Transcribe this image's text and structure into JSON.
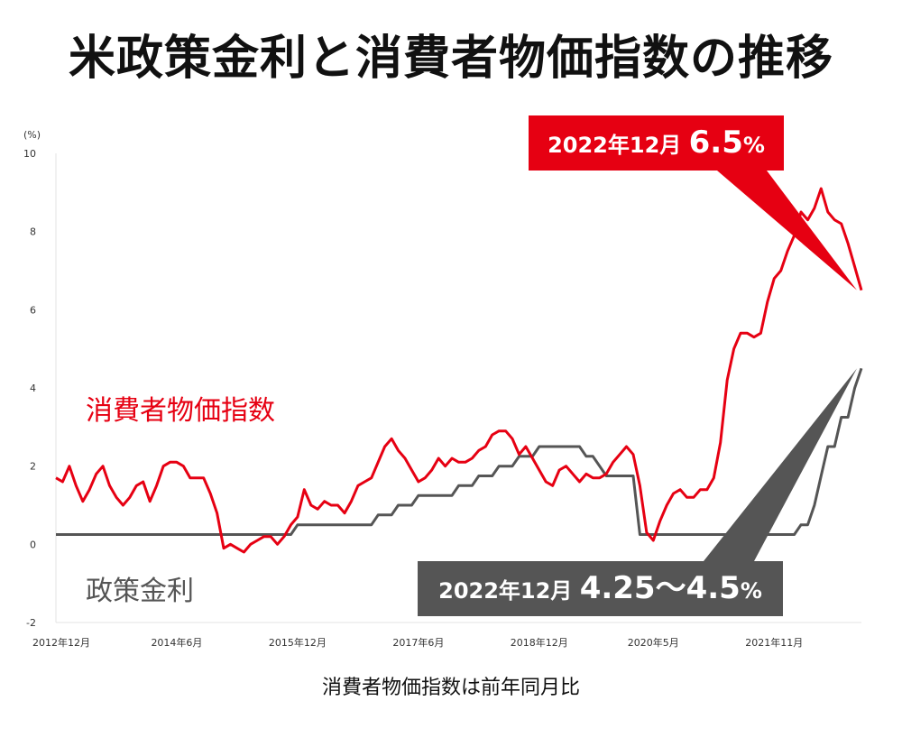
{
  "chart_data": {
    "type": "line",
    "title": "米政策金利と消費者物価指数の推移",
    "caption": "消費者物価指数は前年同月比",
    "y_unit": "(%)",
    "ylim": [
      -2,
      10
    ],
    "yticks": [
      "10",
      "8",
      "6",
      "4",
      "2",
      "0",
      "-2"
    ],
    "grid": false,
    "xlim": [
      "2012-12",
      "2022-12"
    ],
    "x_tick_labels": [
      {
        "label": "2012年12月",
        "date": "2012-12"
      },
      {
        "label": "2014年6月",
        "date": "2014-06"
      },
      {
        "label": "2015年12月",
        "date": "2015-12"
      },
      {
        "label": "2017年6月",
        "date": "2017-06"
      },
      {
        "label": "2018年12月",
        "date": "2018-12"
      },
      {
        "label": "2020年5月",
        "date": "2020-05"
      },
      {
        "label": "2021年11月",
        "date": "2021-11"
      }
    ],
    "series": [
      {
        "name": "消費者物価指数",
        "color": "#e60012",
        "points": [
          [
            "2012-12",
            1.7
          ],
          [
            "2013-01",
            1.6
          ],
          [
            "2013-02",
            2.0
          ],
          [
            "2013-03",
            1.5
          ],
          [
            "2013-04",
            1.1
          ],
          [
            "2013-05",
            1.4
          ],
          [
            "2013-06",
            1.8
          ],
          [
            "2013-07",
            2.0
          ],
          [
            "2013-08",
            1.5
          ],
          [
            "2013-09",
            1.2
          ],
          [
            "2013-10",
            1.0
          ],
          [
            "2013-11",
            1.2
          ],
          [
            "2013-12",
            1.5
          ],
          [
            "2014-01",
            1.6
          ],
          [
            "2014-02",
            1.1
          ],
          [
            "2014-03",
            1.5
          ],
          [
            "2014-04",
            2.0
          ],
          [
            "2014-05",
            2.1
          ],
          [
            "2014-06",
            2.1
          ],
          [
            "2014-07",
            2.0
          ],
          [
            "2014-08",
            1.7
          ],
          [
            "2014-09",
            1.7
          ],
          [
            "2014-10",
            1.7
          ],
          [
            "2014-11",
            1.3
          ],
          [
            "2014-12",
            0.8
          ],
          [
            "2015-01",
            -0.1
          ],
          [
            "2015-02",
            0.0
          ],
          [
            "2015-03",
            -0.1
          ],
          [
            "2015-04",
            -0.2
          ],
          [
            "2015-05",
            0.0
          ],
          [
            "2015-06",
            0.1
          ],
          [
            "2015-07",
            0.2
          ],
          [
            "2015-08",
            0.2
          ],
          [
            "2015-09",
            0.0
          ],
          [
            "2015-10",
            0.2
          ],
          [
            "2015-11",
            0.5
          ],
          [
            "2015-12",
            0.7
          ],
          [
            "2016-01",
            1.4
          ],
          [
            "2016-02",
            1.0
          ],
          [
            "2016-03",
            0.9
          ],
          [
            "2016-04",
            1.1
          ],
          [
            "2016-05",
            1.0
          ],
          [
            "2016-06",
            1.0
          ],
          [
            "2016-07",
            0.8
          ],
          [
            "2016-08",
            1.1
          ],
          [
            "2016-09",
            1.5
          ],
          [
            "2016-10",
            1.6
          ],
          [
            "2016-11",
            1.7
          ],
          [
            "2016-12",
            2.1
          ],
          [
            "2017-01",
            2.5
          ],
          [
            "2017-02",
            2.7
          ],
          [
            "2017-03",
            2.4
          ],
          [
            "2017-04",
            2.2
          ],
          [
            "2017-05",
            1.9
          ],
          [
            "2017-06",
            1.6
          ],
          [
            "2017-07",
            1.7
          ],
          [
            "2017-08",
            1.9
          ],
          [
            "2017-09",
            2.2
          ],
          [
            "2017-10",
            2.0
          ],
          [
            "2017-11",
            2.2
          ],
          [
            "2017-12",
            2.1
          ],
          [
            "2018-01",
            2.1
          ],
          [
            "2018-02",
            2.2
          ],
          [
            "2018-03",
            2.4
          ],
          [
            "2018-04",
            2.5
          ],
          [
            "2018-05",
            2.8
          ],
          [
            "2018-06",
            2.9
          ],
          [
            "2018-07",
            2.9
          ],
          [
            "2018-08",
            2.7
          ],
          [
            "2018-09",
            2.3
          ],
          [
            "2018-10",
            2.5
          ],
          [
            "2018-11",
            2.2
          ],
          [
            "2018-12",
            1.9
          ],
          [
            "2019-01",
            1.6
          ],
          [
            "2019-02",
            1.5
          ],
          [
            "2019-03",
            1.9
          ],
          [
            "2019-04",
            2.0
          ],
          [
            "2019-05",
            1.8
          ],
          [
            "2019-06",
            1.6
          ],
          [
            "2019-07",
            1.8
          ],
          [
            "2019-08",
            1.7
          ],
          [
            "2019-09",
            1.7
          ],
          [
            "2019-10",
            1.8
          ],
          [
            "2019-11",
            2.1
          ],
          [
            "2019-12",
            2.3
          ],
          [
            "2020-01",
            2.5
          ],
          [
            "2020-02",
            2.3
          ],
          [
            "2020-03",
            1.5
          ],
          [
            "2020-04",
            0.3
          ],
          [
            "2020-05",
            0.1
          ],
          [
            "2020-06",
            0.6
          ],
          [
            "2020-07",
            1.0
          ],
          [
            "2020-08",
            1.3
          ],
          [
            "2020-09",
            1.4
          ],
          [
            "2020-10",
            1.2
          ],
          [
            "2020-11",
            1.2
          ],
          [
            "2020-12",
            1.4
          ],
          [
            "2021-01",
            1.4
          ],
          [
            "2021-02",
            1.7
          ],
          [
            "2021-03",
            2.6
          ],
          [
            "2021-04",
            4.2
          ],
          [
            "2021-05",
            5.0
          ],
          [
            "2021-06",
            5.4
          ],
          [
            "2021-07",
            5.4
          ],
          [
            "2021-08",
            5.3
          ],
          [
            "2021-09",
            5.4
          ],
          [
            "2021-10",
            6.2
          ],
          [
            "2021-11",
            6.8
          ],
          [
            "2021-12",
            7.0
          ],
          [
            "2022-01",
            7.5
          ],
          [
            "2022-02",
            7.9
          ],
          [
            "2022-03",
            8.5
          ],
          [
            "2022-04",
            8.3
          ],
          [
            "2022-05",
            8.6
          ],
          [
            "2022-06",
            9.1
          ],
          [
            "2022-07",
            8.5
          ],
          [
            "2022-08",
            8.3
          ],
          [
            "2022-09",
            8.2
          ],
          [
            "2022-10",
            7.7
          ],
          [
            "2022-11",
            7.1
          ],
          [
            "2022-12",
            6.5
          ]
        ]
      },
      {
        "name": "政策金利",
        "color": "#555555",
        "points": [
          [
            "2012-12",
            0.25
          ],
          [
            "2015-11",
            0.25
          ],
          [
            "2015-12",
            0.5
          ],
          [
            "2016-11",
            0.5
          ],
          [
            "2016-12",
            0.75
          ],
          [
            "2017-02",
            0.75
          ],
          [
            "2017-03",
            1.0
          ],
          [
            "2017-05",
            1.0
          ],
          [
            "2017-06",
            1.25
          ],
          [
            "2017-11",
            1.25
          ],
          [
            "2017-12",
            1.5
          ],
          [
            "2018-02",
            1.5
          ],
          [
            "2018-03",
            1.75
          ],
          [
            "2018-05",
            1.75
          ],
          [
            "2018-06",
            2.0
          ],
          [
            "2018-08",
            2.0
          ],
          [
            "2018-09",
            2.25
          ],
          [
            "2018-11",
            2.25
          ],
          [
            "2018-12",
            2.5
          ],
          [
            "2019-06",
            2.5
          ],
          [
            "2019-07",
            2.25
          ],
          [
            "2019-08",
            2.25
          ],
          [
            "2019-09",
            2.0
          ],
          [
            "2019-10",
            1.75
          ],
          [
            "2020-02",
            1.75
          ],
          [
            "2020-03",
            0.25
          ],
          [
            "2022-02",
            0.25
          ],
          [
            "2022-03",
            0.5
          ],
          [
            "2022-04",
            0.5
          ],
          [
            "2022-05",
            1.0
          ],
          [
            "2022-06",
            1.75
          ],
          [
            "2022-07",
            2.5
          ],
          [
            "2022-08",
            2.5
          ],
          [
            "2022-09",
            3.25
          ],
          [
            "2022-10",
            3.25
          ],
          [
            "2022-11",
            4.0
          ],
          [
            "2022-12",
            4.5
          ]
        ]
      }
    ],
    "annotations": [
      {
        "id": "cpi",
        "date_text": "2022年12月",
        "value_text": "6.5",
        "unit_text": "%",
        "box_color": "#e60012",
        "target": [
          "2022-12",
          6.5
        ]
      },
      {
        "id": "rate",
        "date_text": "2022年12月",
        "value_text": "4.25〜4.5",
        "unit_text": "%",
        "box_color": "#555555",
        "target": [
          "2022-12",
          4.5
        ]
      }
    ]
  }
}
